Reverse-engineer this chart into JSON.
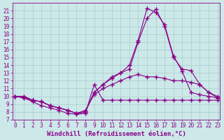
{
  "x": [
    0,
    1,
    2,
    3,
    4,
    5,
    6,
    7,
    8,
    9,
    10,
    11,
    12,
    13,
    14,
    15,
    16,
    17,
    18,
    19,
    20,
    21,
    22,
    23
  ],
  "line_top": [
    10,
    10,
    9.5,
    9.3,
    8.8,
    8.5,
    8.2,
    7.8,
    8.0,
    10.5,
    11.5,
    12.5,
    13.0,
    14.0,
    17.2,
    21.3,
    20.8,
    19.2,
    15.2,
    13.2,
    10.5,
    10.2,
    10.0,
    9.8
  ],
  "line_peak": [
    10,
    10,
    9.5,
    9.3,
    8.8,
    8.5,
    8.2,
    7.8,
    8.0,
    10.5,
    11.5,
    12.3,
    13.0,
    13.5,
    17.0,
    20.0,
    21.2,
    19.0,
    15.0,
    13.5,
    13.3,
    11.5,
    10.5,
    9.8
  ],
  "line_mid": [
    10,
    9.8,
    9.5,
    9.3,
    8.8,
    8.5,
    8.2,
    7.8,
    8.2,
    10.2,
    11.0,
    11.5,
    12.0,
    12.5,
    12.8,
    12.5,
    12.5,
    12.3,
    12.0,
    12.0,
    11.8,
    11.5,
    10.5,
    10.0
  ],
  "line_bot": [
    10,
    9.8,
    9.3,
    8.8,
    8.5,
    8.2,
    7.8,
    7.7,
    7.8,
    11.5,
    9.5,
    9.5,
    9.5,
    9.5,
    9.5,
    9.5,
    9.5,
    9.5,
    9.5,
    9.5,
    9.5,
    9.5,
    9.5,
    9.5
  ],
  "ylim_min": 7,
  "ylim_max": 22,
  "xlim_min": 0,
  "xlim_max": 23,
  "yticks": [
    7,
    8,
    9,
    10,
    11,
    12,
    13,
    14,
    15,
    16,
    17,
    18,
    19,
    20,
    21
  ],
  "xticks": [
    0,
    1,
    2,
    3,
    4,
    5,
    6,
    7,
    8,
    9,
    10,
    11,
    12,
    13,
    14,
    15,
    16,
    17,
    18,
    19,
    20,
    21,
    22,
    23
  ],
  "xlabel": "Windchill (Refroidissement éolien,°C)",
  "bg_color": "#cce8e8",
  "line_color": "#880088",
  "grid_color": "#aacccc",
  "marker": "+",
  "linewidth": 0.8,
  "markersize": 4,
  "markeredgewidth": 1.0,
  "tick_fontsize": 5.5,
  "xlabel_fontsize": 6.5
}
